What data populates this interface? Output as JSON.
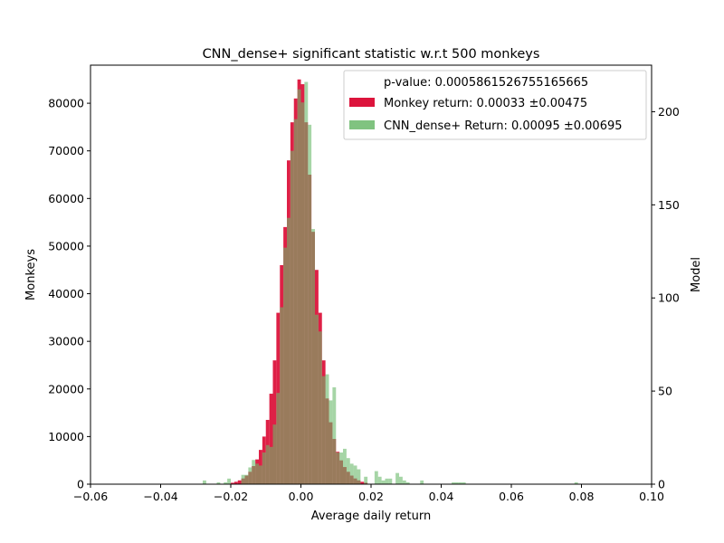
{
  "chart_data": {
    "type": "bar",
    "title": "CNN_dense+ significant statistic w.r.t 500 monkeys",
    "xlabel": "Average daily return",
    "ylabel_left": "Monkeys",
    "ylabel_right": "Model",
    "xlim": [
      -0.06,
      0.1
    ],
    "ylim_left": [
      0,
      88000
    ],
    "ylim_right": [
      0,
      225
    ],
    "x_ticks": [
      -0.06,
      -0.04,
      -0.02,
      0.0,
      0.02,
      0.04,
      0.06,
      0.08,
      0.1
    ],
    "x_tick_labels": [
      "−0.06",
      "−0.04",
      "−0.02",
      "0.00",
      "0.02",
      "0.04",
      "0.06",
      "0.08",
      "0.10"
    ],
    "y_left_ticks": [
      0,
      10000,
      20000,
      30000,
      40000,
      50000,
      60000,
      70000,
      80000
    ],
    "y_left_tick_labels": [
      "0",
      "10000",
      "20000",
      "30000",
      "40000",
      "50000",
      "60000",
      "70000",
      "80000"
    ],
    "y_right_ticks": [
      0,
      50,
      100,
      150,
      200
    ],
    "y_right_tick_labels": [
      "0",
      "50",
      "100",
      "150",
      "200"
    ],
    "legend": {
      "placement": "top-right",
      "entries": [
        {
          "label": "p-value: 0.0005861526755165665",
          "color": null
        },
        {
          "label": "Monkey return: 0.00033 ±0.00475",
          "color": "#dc143c"
        },
        {
          "label": "CNN_dense+ Return: 0.00095 ±0.00695",
          "color": "#6ab96a"
        }
      ]
    },
    "series": [
      {
        "name": "Monkey return: 0.00033 ±0.00475",
        "axis": "left",
        "color": "#dc143c",
        "bin_width": 0.001,
        "x": [
          -0.02,
          -0.019,
          -0.018,
          -0.017,
          -0.016,
          -0.015,
          -0.014,
          -0.013,
          -0.012,
          -0.011,
          -0.01,
          -0.009,
          -0.008,
          -0.007,
          -0.006,
          -0.005,
          -0.004,
          -0.003,
          -0.002,
          -0.001,
          0.0,
          0.001,
          0.002,
          0.003,
          0.004,
          0.005,
          0.006,
          0.007,
          0.008,
          0.009,
          0.01,
          0.011,
          0.012,
          0.013,
          0.014,
          0.015,
          0.016,
          0.017,
          0.018
        ],
        "values": [
          300,
          500,
          800,
          1200,
          1800,
          2600,
          3800,
          5200,
          7200,
          10000,
          13500,
          19000,
          26000,
          36000,
          46000,
          54000,
          68000,
          76000,
          81000,
          85000,
          84000,
          76000,
          65000,
          53000,
          45000,
          36000,
          26000,
          18000,
          13000,
          9500,
          6800,
          5000,
          3600,
          2600,
          1800,
          1200,
          800,
          500,
          300
        ]
      },
      {
        "name": "CNN_dense+ Return: 0.00095 ±0.00695",
        "axis": "right",
        "color": "#6ab96a",
        "bin_width": 0.001,
        "x": [
          -0.028,
          -0.024,
          -0.022,
          -0.021,
          -0.017,
          -0.016,
          -0.015,
          -0.014,
          -0.013,
          -0.012,
          -0.011,
          -0.01,
          -0.009,
          -0.008,
          -0.007,
          -0.006,
          -0.005,
          -0.004,
          -0.003,
          -0.002,
          -0.001,
          0.0,
          0.001,
          0.002,
          0.003,
          0.004,
          0.005,
          0.006,
          0.007,
          0.008,
          0.009,
          0.01,
          0.011,
          0.012,
          0.013,
          0.014,
          0.015,
          0.016,
          0.018,
          0.021,
          0.022,
          0.023,
          0.024,
          0.025,
          0.027,
          0.028,
          0.029,
          0.03,
          0.034,
          0.043,
          0.044,
          0.045,
          0.046,
          0.078
        ],
        "values": [
          2,
          1,
          1,
          3,
          5,
          5,
          9,
          13,
          11,
          10,
          17,
          21,
          20,
          32,
          49,
          95,
          127,
          143,
          179,
          196,
          212,
          205,
          216,
          193,
          137,
          91,
          82,
          58,
          59,
          45,
          52,
          17,
          17,
          19,
          14,
          11,
          10,
          8,
          4,
          7,
          4,
          2,
          3,
          3,
          6,
          4,
          2,
          1,
          2,
          1,
          1,
          1,
          1,
          1
        ]
      }
    ]
  }
}
